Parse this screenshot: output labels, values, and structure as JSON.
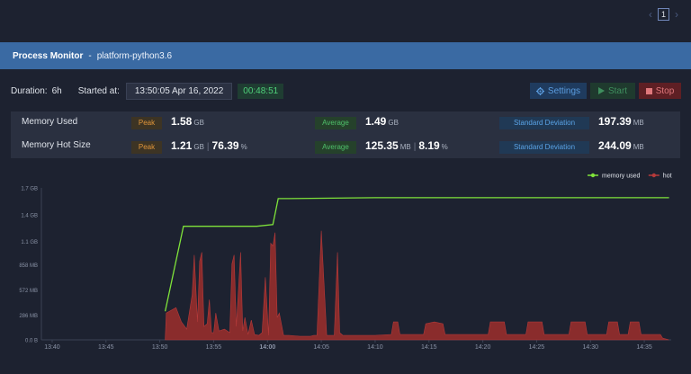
{
  "pager": {
    "current": "1",
    "prev_icon": "chevron-left-icon",
    "next_icon": "chevron-right-icon"
  },
  "header": {
    "title": "Process Monitor",
    "separator": "-",
    "process": "platform-python3.6"
  },
  "info": {
    "duration_label": "Duration:",
    "duration_value": "6h",
    "started_label": "Started at:",
    "started_value": "13:50:05 Apr 16, 2022",
    "elapsed": "00:48:51"
  },
  "buttons": {
    "settings": "Settings",
    "start": "Start",
    "stop": "Stop",
    "settings_icon": "gear-icon",
    "start_icon": "play-icon",
    "stop_icon": "stop-icon"
  },
  "stats": {
    "memory_used": {
      "label": "Memory Used",
      "peak_label": "Peak",
      "peak_value": "1.58",
      "peak_unit": "GB",
      "avg_label": "Average",
      "avg_value": "1.49",
      "avg_unit": "GB",
      "sd_label": "Standard Deviation",
      "sd_value": "197.39",
      "sd_unit": "MB"
    },
    "memory_hot": {
      "label": "Memory Hot Size",
      "peak_label": "Peak",
      "peak_value": "1.21",
      "peak_unit": "GB",
      "peak_pct": "76.39",
      "peak_pct_unit": "%",
      "avg_label": "Average",
      "avg_value": "125.35",
      "avg_unit": "MB",
      "avg_pct": "8.19",
      "avg_pct_unit": "%",
      "sd_label": "Standard Deviation",
      "sd_value": "244.09",
      "sd_unit": "MB"
    }
  },
  "colors": {
    "memory_used": "#7fe33a",
    "hot": "#8a2c2c",
    "hot_stroke": "#b53a3a",
    "axis_text": "#8a93a6"
  },
  "chart_data": {
    "type": "area",
    "y_ticks": [
      "0.0 B",
      "286 MB",
      "572 MB",
      "858 MB",
      "1.1 GB",
      "1.4 GB",
      "1.7 GB"
    ],
    "y_tick_values": [
      0,
      0.279,
      0.559,
      0.838,
      1.1,
      1.4,
      1.7
    ],
    "ylim": [
      0,
      1.7
    ],
    "x_ticks": [
      "13:40",
      "13:45",
      "13:50",
      "13:55",
      "14:00",
      "14:05",
      "14:10",
      "14:15",
      "14:20",
      "14:25",
      "14:30",
      "14:35"
    ],
    "x_tick_minutes": [
      0,
      5,
      10,
      15,
      20,
      25,
      30,
      35,
      40,
      45,
      50,
      55
    ],
    "xlim": [
      -1,
      57.5
    ],
    "legend_position": "top-right",
    "series": [
      {
        "name": "memory used",
        "kind": "line",
        "x": [
          10.5,
          12.2,
          15,
          17,
          19,
          20.5,
          21,
          22,
          30,
          40,
          57.3
        ],
        "y": [
          0.32,
          1.27,
          1.27,
          1.27,
          1.27,
          1.29,
          1.58,
          1.58,
          1.59,
          1.59,
          1.59
        ]
      },
      {
        "name": "hot",
        "kind": "area",
        "x": [
          10.5,
          10.6,
          11.5,
          12,
          12.5,
          13,
          13.2,
          13.5,
          13.7,
          13.9,
          14.1,
          14.4,
          14.6,
          14.8,
          15.0,
          15.2,
          15.5,
          16.0,
          16.5,
          16.7,
          16.9,
          17.1,
          17.3,
          17.5,
          17.7,
          17.9,
          18.2,
          18.5,
          18.8,
          19.2,
          19.5,
          19.8,
          20.1,
          20.3,
          20.5,
          20.7,
          20.9,
          21.1,
          21.5,
          22,
          23,
          24,
          24.3,
          24.6,
          25,
          25.5,
          26.2,
          26.5,
          26.7,
          27,
          27.5,
          30,
          31.5,
          31.7,
          31.9,
          32.1,
          32.3,
          34.5,
          34.7,
          35.5,
          36.3,
          36.5,
          40.5,
          40.7,
          42,
          42.2,
          44,
          44.2,
          45.5,
          45.7,
          48,
          48.2,
          49.5,
          49.7,
          51.5,
          51.7,
          52.5,
          52.7,
          53.5,
          53.7,
          54.5,
          54.7,
          56.5,
          56.7,
          57.3
        ],
        "y": [
          0,
          0.3,
          0.36,
          0.2,
          0.12,
          0.5,
          0.95,
          0.2,
          0.88,
          0.98,
          0.15,
          0.18,
          0.45,
          0.08,
          0.08,
          0.3,
          0.1,
          0.12,
          0.08,
          0.85,
          0.95,
          0.15,
          0.55,
          0.98,
          0.1,
          0.25,
          0.06,
          0.22,
          0.06,
          0.05,
          0.08,
          0.7,
          0.05,
          1.08,
          1.05,
          1.2,
          0.25,
          0.3,
          0.05,
          0.05,
          0.04,
          0.04,
          0.05,
          0.05,
          1.22,
          0.05,
          0.05,
          0.98,
          0.08,
          0.05,
          0.05,
          0.05,
          0.06,
          0.2,
          0.2,
          0.2,
          0.06,
          0.06,
          0.18,
          0.2,
          0.18,
          0.06,
          0.06,
          0.2,
          0.2,
          0.06,
          0.06,
          0.2,
          0.2,
          0.06,
          0.06,
          0.2,
          0.2,
          0.06,
          0.06,
          0.2,
          0.2,
          0.06,
          0.06,
          0.2,
          0.2,
          0.06,
          0.06,
          0.02,
          0
        ]
      }
    ]
  }
}
